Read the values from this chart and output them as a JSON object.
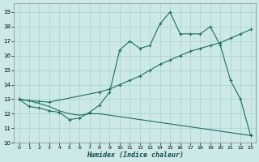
{
  "bg_color": "#cce8e8",
  "grid_color": "#a8d0d0",
  "line_color": "#1a7060",
  "xlabel": "Humidex (Indice chaleur)",
  "xlim": [
    -0.5,
    23.5
  ],
  "ylim": [
    10.0,
    19.6
  ],
  "xticks": [
    0,
    1,
    2,
    3,
    4,
    5,
    6,
    7,
    8,
    9,
    10,
    11,
    12,
    13,
    14,
    15,
    16,
    17,
    18,
    19,
    20,
    21,
    22,
    23
  ],
  "yticks": [
    10,
    11,
    12,
    13,
    14,
    15,
    16,
    17,
    18,
    19
  ],
  "line1_x": [
    0,
    1,
    2,
    3,
    4,
    5,
    6,
    7,
    8,
    9,
    10,
    11,
    12,
    13,
    14,
    15,
    16,
    17,
    18,
    19,
    20,
    21,
    22,
    23
  ],
  "line1_y": [
    13.0,
    12.5,
    12.4,
    12.2,
    12.1,
    11.6,
    11.7,
    12.1,
    12.6,
    13.5,
    16.4,
    17.0,
    16.5,
    16.7,
    18.2,
    19.0,
    17.5,
    17.5,
    17.5,
    18.0,
    16.7,
    14.3,
    13.0,
    10.5
  ],
  "line2_x": [
    0,
    1,
    2,
    3,
    8,
    9,
    10,
    11,
    12,
    13,
    14,
    15,
    16,
    17,
    18,
    19,
    20,
    21,
    22,
    23
  ],
  "line2_y": [
    13.0,
    12.9,
    12.85,
    12.8,
    13.5,
    13.7,
    14.0,
    14.3,
    14.6,
    15.0,
    15.4,
    15.7,
    16.0,
    16.3,
    16.5,
    16.7,
    16.9,
    17.2,
    17.5,
    17.8
  ],
  "line3_x": [
    0,
    1,
    2,
    3,
    4,
    5,
    6,
    7,
    8,
    9,
    10,
    11,
    12,
    13,
    14,
    15,
    16,
    17,
    18,
    19,
    20,
    21,
    22,
    23
  ],
  "line3_y": [
    13.0,
    12.9,
    12.7,
    12.5,
    12.2,
    12.0,
    11.9,
    12.0,
    12.0,
    11.9,
    11.8,
    11.7,
    11.6,
    11.5,
    11.4,
    11.3,
    11.2,
    11.1,
    11.0,
    10.9,
    10.8,
    10.7,
    10.6,
    10.5
  ]
}
